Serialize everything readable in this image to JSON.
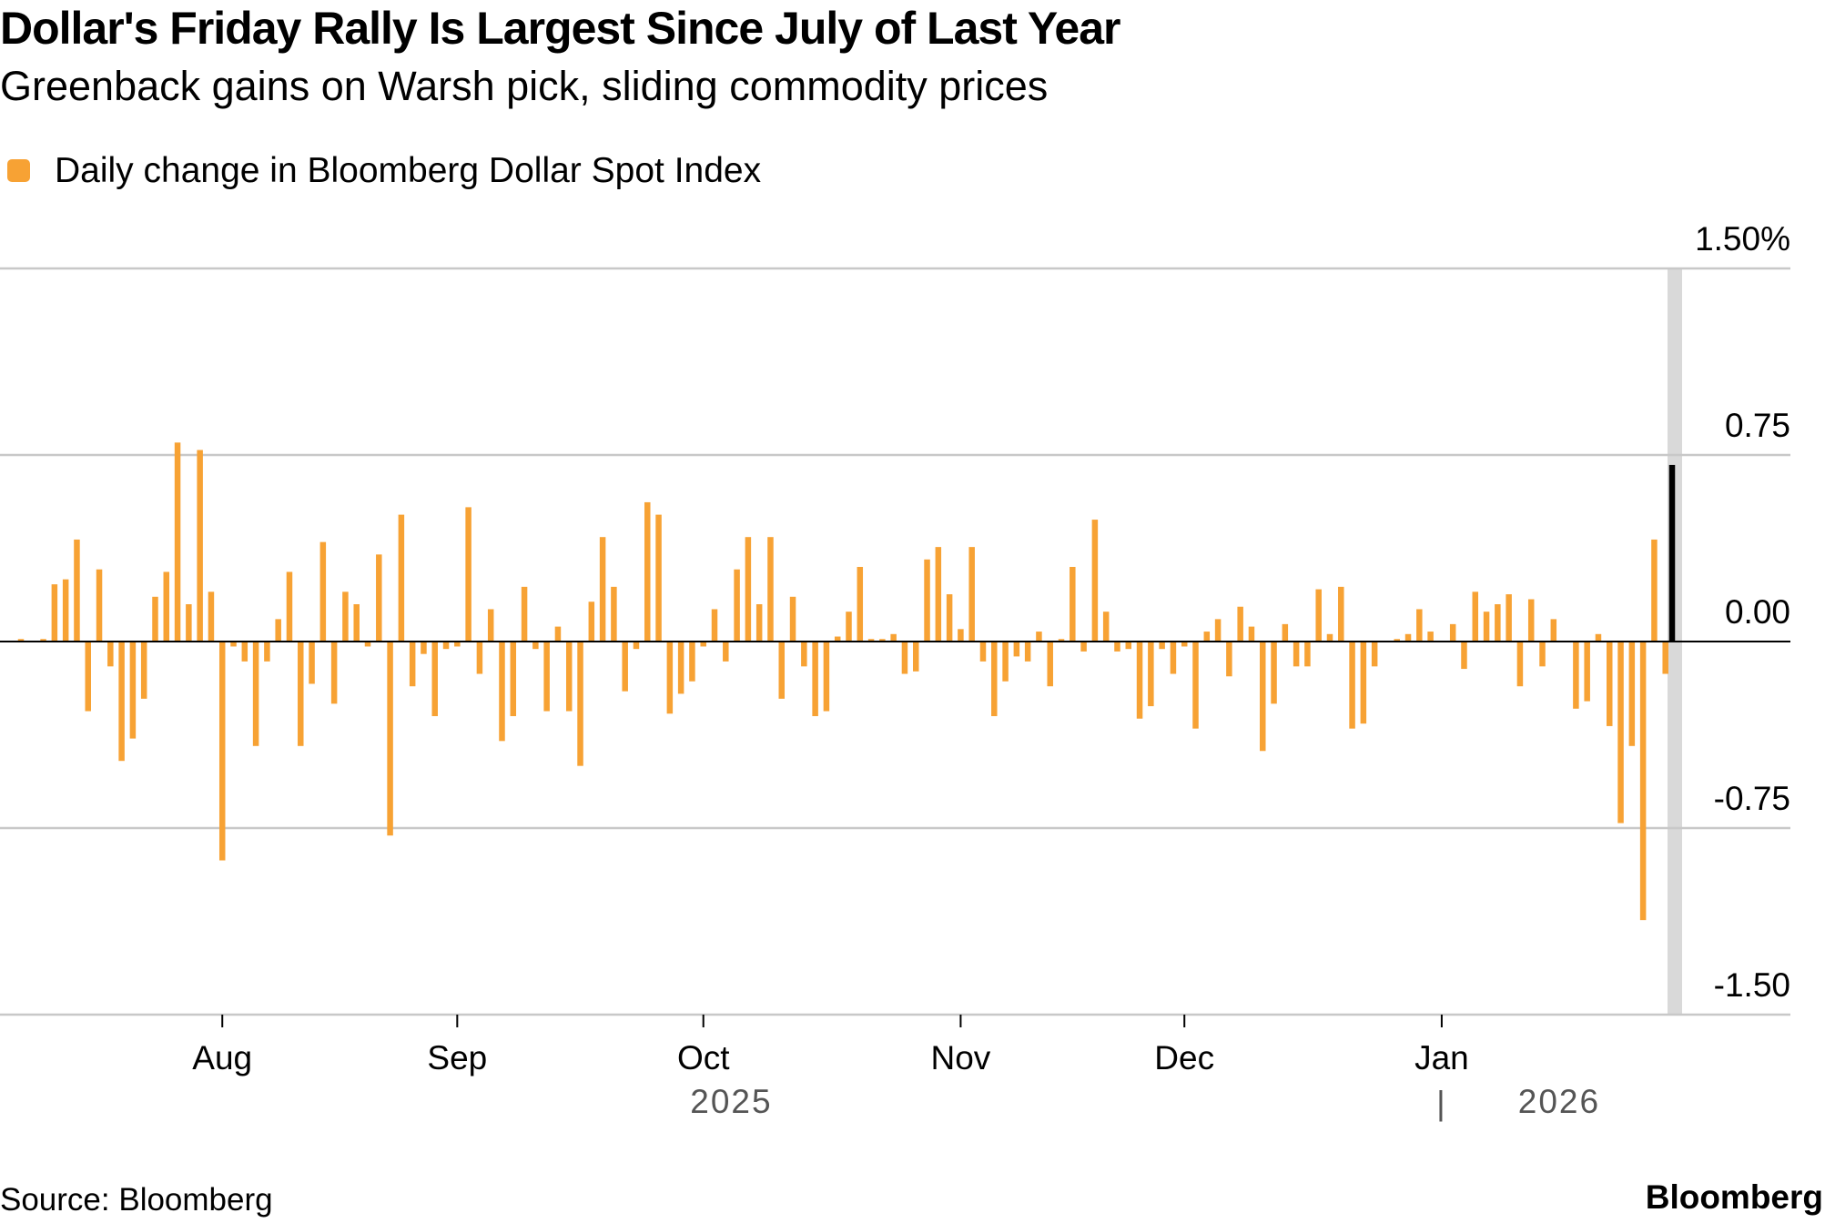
{
  "chart_data": {
    "type": "bar",
    "title": "Dollar's Friday Rally Is Largest Since July of Last Year",
    "subtitle": "Greenback gains on Warsh pick, sliding commodity prices",
    "source": "Source: Bloomberg",
    "brand": "Bloomberg",
    "year_labels": [
      "2025",
      "2026"
    ],
    "year_separator": "|",
    "categories": [
      null,
      null,
      null,
      null,
      null,
      null,
      null,
      null,
      null,
      null,
      null,
      null,
      null,
      null,
      null,
      null,
      null,
      null,
      "Aug",
      null,
      null,
      null,
      null,
      null,
      null,
      null,
      null,
      null,
      null,
      null,
      null,
      null,
      null,
      null,
      null,
      null,
      null,
      null,
      null,
      "Sep",
      null,
      null,
      null,
      null,
      null,
      null,
      null,
      null,
      null,
      null,
      null,
      null,
      null,
      null,
      null,
      null,
      null,
      null,
      null,
      null,
      null,
      "Oct",
      null,
      null,
      null,
      null,
      null,
      null,
      null,
      null,
      null,
      null,
      null,
      null,
      null,
      null,
      null,
      null,
      null,
      null,
      null,
      null,
      null,
      null,
      "Nov",
      null,
      null,
      null,
      null,
      null,
      null,
      null,
      null,
      null,
      null,
      null,
      null,
      null,
      null,
      null,
      null,
      null,
      null,
      null,
      "Dec",
      null,
      null,
      null,
      null,
      null,
      null,
      null,
      null,
      null,
      null,
      null,
      null,
      null,
      null,
      null,
      null,
      null,
      null,
      null,
      null,
      null,
      null,
      "Jan",
      null,
      null,
      null,
      null,
      null,
      null,
      null,
      null,
      null,
      null,
      null,
      null,
      null,
      null,
      null,
      null,
      null,
      null,
      null,
      null,
      null
    ],
    "series": [
      {
        "name": "Daily change in Bloomberg Dollar Spot Index",
        "color": "#f7a234",
        "values": [
          0.01,
          0,
          0.01,
          0.23,
          0.25,
          0.41,
          -0.28,
          0.29,
          -0.1,
          -0.48,
          -0.39,
          -0.23,
          0.18,
          0.28,
          0.8,
          0.15,
          0.77,
          0.2,
          -0.88,
          -0.02,
          -0.08,
          -0.42,
          -0.08,
          0.09,
          0.28,
          -0.42,
          -0.17,
          0.4,
          -0.25,
          0.2,
          0.15,
          -0.02,
          0.35,
          -0.78,
          0.51,
          -0.18,
          -0.05,
          -0.3,
          -0.03,
          -0.02,
          0.54,
          -0.13,
          0.13,
          -0.4,
          -0.3,
          0.22,
          -0.03,
          -0.28,
          0.06,
          -0.28,
          -0.5,
          0.16,
          0.42,
          0.22,
          -0.2,
          -0.03,
          0.56,
          0.51,
          -0.29,
          -0.21,
          -0.16,
          -0.02,
          0.13,
          -0.08,
          0.29,
          0.42,
          0.15,
          0.42,
          -0.23,
          0.18,
          -0.1,
          -0.3,
          -0.28,
          0.02,
          0.12,
          0.3,
          0.01,
          0.01,
          0.03,
          -0.13,
          -0.12,
          0.33,
          0.38,
          0.19,
          0.05,
          0.38,
          -0.08,
          -0.3,
          -0.16,
          -0.06,
          -0.08,
          0.04,
          -0.18,
          0.01,
          0.3,
          -0.04,
          0.49,
          0.12,
          -0.04,
          -0.03,
          -0.31,
          -0.26,
          -0.03,
          -0.13,
          -0.02,
          -0.35,
          0.04,
          0.09,
          -0.14,
          0.14,
          0.06,
          -0.44,
          -0.25,
          0.07,
          -0.1,
          -0.1,
          0.21,
          0.03,
          0.22,
          -0.35,
          -0.33,
          -0.1,
          0,
          0.01,
          0.03,
          0.13,
          0.04,
          0,
          0.07,
          -0.11,
          0.2,
          0.12,
          0.15,
          0.19,
          -0.18,
          0.17,
          -0.1,
          0.09,
          0,
          -0.27,
          -0.24,
          0.03,
          -0.34,
          -0.73,
          -0.42,
          -1.12,
          0.41,
          -0.13,
          0.71
        ]
      }
    ],
    "highlight_color": "#000000",
    "highlight_band_color": "#d9d9d9",
    "ylim": [
      -1.5,
      1.5
    ],
    "yticks": [
      {
        "value": 1.5,
        "label": "1.50%"
      },
      0.75,
      {
        "value": 0,
        "label": "0.00"
      },
      -0.75,
      {
        "value": -1.5,
        "label": "-1.50"
      }
    ],
    "grid": true
  }
}
